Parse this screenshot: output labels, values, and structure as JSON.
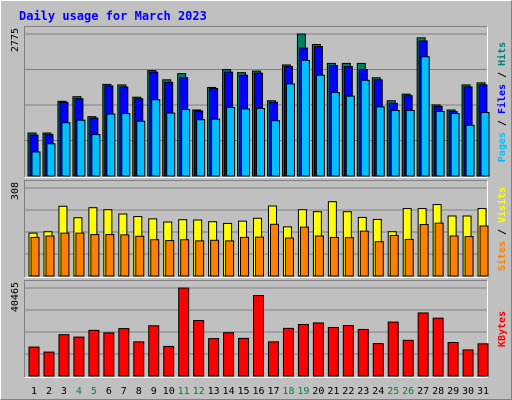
{
  "chart_data": {
    "type": "bar",
    "title": "Daily usage for March 2023",
    "categories": [
      "1",
      "2",
      "3",
      "4",
      "5",
      "6",
      "7",
      "8",
      "9",
      "10",
      "11",
      "12",
      "13",
      "14",
      "15",
      "16",
      "17",
      "18",
      "19",
      "20",
      "21",
      "22",
      "23",
      "24",
      "25",
      "26",
      "27",
      "28",
      "29",
      "30",
      "31"
    ],
    "weekend_days": [
      "4",
      "5",
      "11",
      "12",
      "18",
      "19",
      "25",
      "26"
    ],
    "weekday_label_color": "#000000",
    "weekend_label_color": "#008040",
    "panels": [
      {
        "id": "top",
        "ymax": 2775,
        "ymax_label": "2775",
        "axis_labels": [
          {
            "text": "Pages",
            "color": "#00c0ff"
          },
          {
            "text": " / ",
            "color": "#000000"
          },
          {
            "text": "Files",
            "color": "#0000ff"
          },
          {
            "text": " / ",
            "color": "#000000"
          },
          {
            "text": "Hits",
            "color": "#008080"
          }
        ],
        "series": [
          {
            "name": "Hits",
            "color": "#008060",
            "values": [
              840,
              840,
              1460,
              1550,
              1160,
              1790,
              1780,
              1540,
              2060,
              1880,
              2000,
              1290,
              1730,
              2080,
              2020,
              2050,
              1470,
              2170,
              2780,
              2570,
              2200,
              2200,
              2200,
              1920,
              1470,
              1600,
              2700,
              1390,
              1290,
              1780,
              1820
            ]
          },
          {
            "name": "Files",
            "color": "#0000ff",
            "values": [
              800,
              810,
              1440,
              1510,
              1130,
              1760,
              1740,
              1510,
              2030,
              1830,
              1920,
              1270,
              1710,
              2030,
              1970,
              2010,
              1440,
              2140,
              2500,
              2530,
              2160,
              2140,
              2080,
              1880,
              1420,
              1570,
              2640,
              1360,
              1260,
              1740,
              1780
            ]
          },
          {
            "name": "Pages",
            "color": "#00c0ff",
            "values": [
              470,
              630,
              1040,
              1090,
              810,
              1210,
              1220,
              1070,
              1490,
              1230,
              1300,
              1100,
              1110,
              1340,
              1310,
              1320,
              1080,
              1800,
              2260,
              1970,
              1630,
              1560,
              1870,
              1350,
              1280,
              1280,
              2330,
              1260,
              1220,
              990,
              1240
            ]
          }
        ]
      },
      {
        "id": "middle",
        "ymax": 308,
        "ymax_label": "308",
        "axis_labels": [
          {
            "text": "Sites",
            "color": "#ff8000"
          },
          {
            "text": " / ",
            "color": "#000000"
          },
          {
            "text": "Visits",
            "color": "#ffff00"
          }
        ],
        "series": [
          {
            "name": "Visits",
            "color": "#ffff00",
            "values": [
              150,
              155,
              244,
              204,
              239,
              232,
              217,
              208,
              200,
              189,
              197,
              196,
              190,
              184,
              192,
              202,
              245,
              172,
              232,
              225,
              260,
              225,
              205,
              198,
              155,
              236,
              236,
              250,
              210,
              210,
              236
            ]
          },
          {
            "name": "Sites",
            "color": "#ff8000",
            "values": [
              135,
              140,
              150,
              150,
              145,
              145,
              144,
              139,
              127,
              124,
              127,
              123,
              125,
              123,
              135,
              136,
              181,
              133,
              171,
              140,
              135,
              134,
              157,
              120,
              142,
              128,
              180,
              185,
              140,
              138,
              175
            ]
          }
        ]
      },
      {
        "id": "bottom",
        "ymax": 40465,
        "ymax_label": "40465",
        "axis_labels": [
          {
            "text": "KBytes",
            "color": "#ff0000"
          }
        ],
        "series": [
          {
            "name": "KBytes",
            "color": "#ff0000",
            "values": [
              13300,
              11000,
              19000,
              17900,
              21000,
              19800,
              21800,
              15700,
              23100,
              13600,
              40465,
              25500,
              17200,
              19900,
              17300,
              37000,
              15700,
              21900,
              23700,
              24400,
              22300,
              23200,
              21400,
              14900,
              24800,
              16400,
              29000,
              26600,
              15400,
              12000,
              14800
            ]
          }
        ]
      }
    ]
  }
}
